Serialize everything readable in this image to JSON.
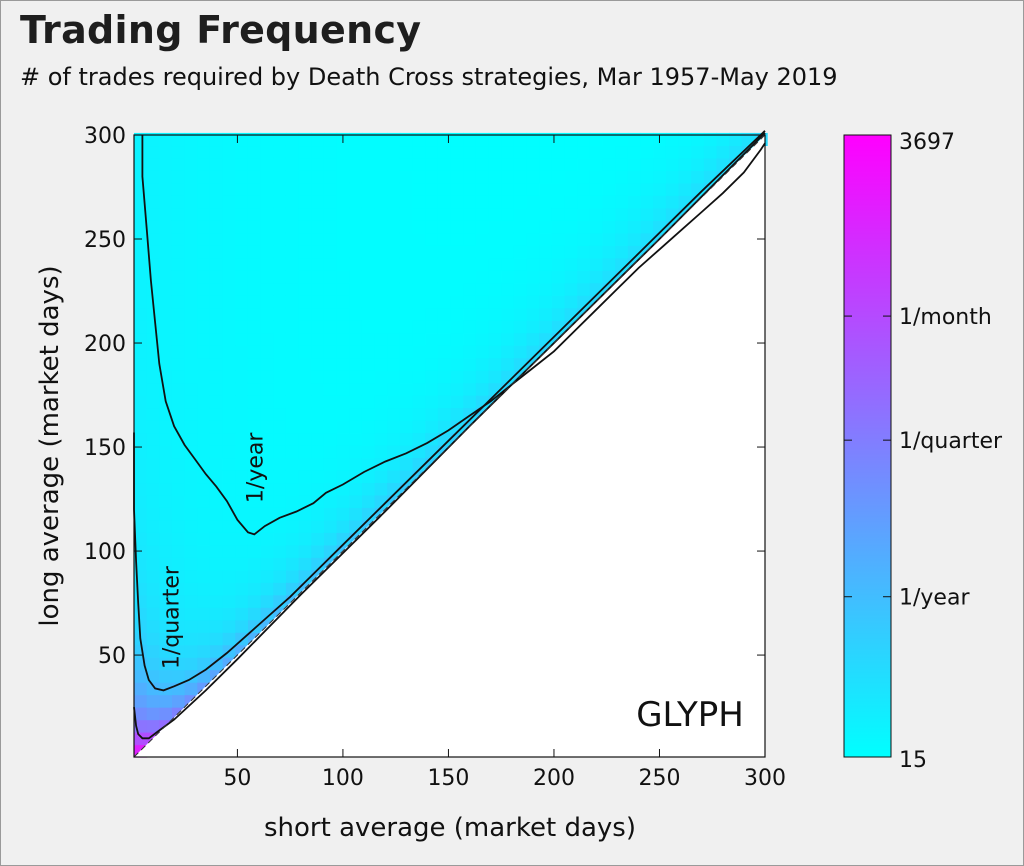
{
  "header": {
    "title": "Trading Frequency",
    "subtitle": "# of trades required by Death Cross strategies, Mar 1957-May 2019"
  },
  "watermark": "GLYPH",
  "colors": {
    "background": "#f0f0f0",
    "low": "#00ffff",
    "high": "#ff00ff",
    "contour": "#111111",
    "watermark": "#707070"
  },
  "chart_data": {
    "type": "heatmap",
    "title": "Trading Frequency",
    "subtitle": "# of trades required by Death Cross strategies, Mar 1957-May 2019",
    "xlabel": "short average (market days)",
    "ylabel": "long average (market days)",
    "xlim": [
      1,
      300
    ],
    "ylim": [
      1,
      300
    ],
    "xticks": [
      50,
      100,
      150,
      200,
      250,
      300
    ],
    "yticks": [
      50,
      100,
      150,
      200,
      250,
      300
    ],
    "grid": false,
    "valid_region": "long average > short average",
    "colorbar": {
      "min": 15,
      "max": 3697,
      "min_label": "15",
      "max_label": "3697",
      "colormap": [
        "#00ffff",
        "#ff00ff"
      ],
      "scale": "log",
      "ticks": [
        {
          "label": "1/year",
          "value": 62
        },
        {
          "label": "1/quarter",
          "value": 248
        },
        {
          "label": "1/month",
          "value": 744
        }
      ]
    },
    "contours": [
      {
        "label": "1/year",
        "label_at": [
          62,
          140
        ],
        "points": [
          [
            5,
            300
          ],
          [
            5,
            280
          ],
          [
            7,
            255
          ],
          [
            9,
            230
          ],
          [
            11,
            210
          ],
          [
            13,
            190
          ],
          [
            16,
            172
          ],
          [
            20,
            160
          ],
          [
            25,
            151
          ],
          [
            30,
            144
          ],
          [
            35,
            137
          ],
          [
            40,
            131
          ],
          [
            45,
            124
          ],
          [
            50,
            115
          ],
          [
            55,
            109
          ],
          [
            58,
            108
          ],
          [
            63,
            112
          ],
          [
            70,
            116
          ],
          [
            78,
            119
          ],
          [
            86,
            123
          ],
          [
            92,
            128
          ],
          [
            100,
            132
          ],
          [
            110,
            138
          ],
          [
            120,
            143
          ],
          [
            130,
            147
          ],
          [
            140,
            152
          ],
          [
            150,
            158
          ],
          [
            160,
            165
          ],
          [
            170,
            172
          ],
          [
            180,
            180
          ],
          [
            190,
            188
          ],
          [
            200,
            196
          ],
          [
            210,
            206
          ],
          [
            220,
            216
          ],
          [
            230,
            226
          ],
          [
            240,
            236
          ],
          [
            250,
            245
          ],
          [
            260,
            254
          ],
          [
            270,
            263
          ],
          [
            280,
            272
          ],
          [
            290,
            282
          ],
          [
            298,
            293
          ],
          [
            300,
            296
          ]
        ]
      },
      {
        "label": "1/quarter",
        "label_at": [
          22,
          68
        ],
        "points": [
          [
            1,
            157
          ],
          [
            1,
            120
          ],
          [
            2,
            95
          ],
          [
            3,
            75
          ],
          [
            4,
            58
          ],
          [
            6,
            45
          ],
          [
            8,
            38
          ],
          [
            11,
            34
          ],
          [
            15,
            33
          ],
          [
            20,
            35
          ],
          [
            27,
            38
          ],
          [
            35,
            43
          ],
          [
            45,
            51
          ],
          [
            55,
            60
          ],
          [
            65,
            69
          ],
          [
            75,
            78
          ],
          [
            85,
            88
          ],
          [
            100,
            103
          ],
          [
            120,
            123
          ],
          [
            150,
            153
          ],
          [
            180,
            183
          ],
          [
            210,
            213
          ],
          [
            240,
            243
          ],
          [
            270,
            273
          ],
          [
            300,
            302
          ]
        ]
      },
      {
        "label": "1/month",
        "label_at": null,
        "points": [
          [
            1,
            25
          ],
          [
            2,
            16
          ],
          [
            3,
            12
          ],
          [
            5,
            10
          ],
          [
            8,
            10
          ],
          [
            12,
            13
          ],
          [
            20,
            19
          ],
          [
            35,
            33
          ],
          [
            50,
            48
          ],
          [
            80,
            79
          ],
          [
            120,
            119
          ],
          [
            160,
            160
          ],
          [
            200,
            200
          ],
          [
            250,
            250
          ],
          [
            300,
            301
          ]
        ]
      }
    ]
  }
}
